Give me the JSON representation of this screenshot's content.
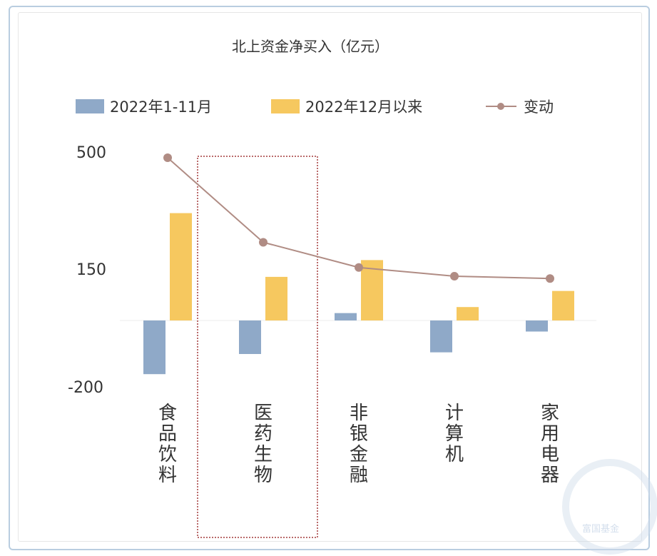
{
  "chart_data": {
    "type": "bar",
    "title": "北上资金净买入（亿元）",
    "categories": [
      "食品饮料",
      "医药生物",
      "非银金融",
      "计算机",
      "家用电器"
    ],
    "series": [
      {
        "name": "2022年1-11月",
        "type": "bar",
        "color": "#8fa9c8",
        "values": [
          -160,
          -100,
          22,
          -95,
          -33
        ]
      },
      {
        "name": "2022年12月以来",
        "type": "bar",
        "color": "#f6c85f",
        "values": [
          320,
          130,
          180,
          40,
          88
        ]
      },
      {
        "name": "变动",
        "type": "line",
        "color": "#b08c84",
        "values": [
          485,
          233,
          158,
          132,
          125
        ]
      }
    ],
    "y_ticks": [
      "500",
      "150",
      "-200"
    ],
    "ylim": [
      -200,
      500
    ],
    "highlight_category": "医药生物",
    "grid": false,
    "legend_position": "top"
  },
  "watermark": {
    "text": "富国基金"
  }
}
